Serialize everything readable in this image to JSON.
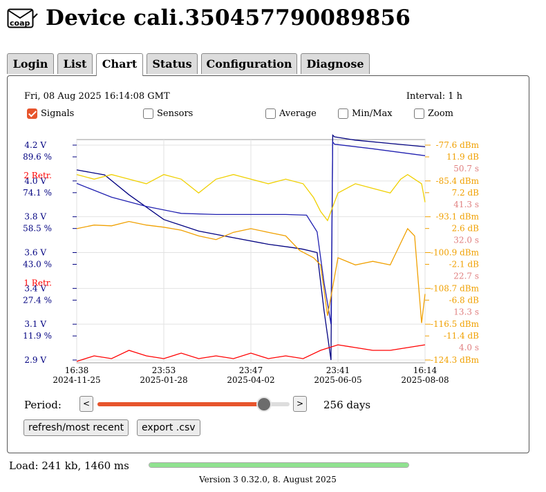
{
  "header": {
    "logo_text": "coap",
    "title": "Device cali.350457790089856"
  },
  "tabs": [
    {
      "label": "Login",
      "active": false
    },
    {
      "label": "List",
      "active": false
    },
    {
      "label": "Chart",
      "active": true
    },
    {
      "label": "Status",
      "active": false
    },
    {
      "label": "Configuration",
      "active": false
    },
    {
      "label": "Diagnose",
      "active": false
    }
  ],
  "chart_panel": {
    "timestamp": "Fri, 08 Aug 2025 16:14:08 GMT",
    "interval": "Interval: 1 h",
    "options": [
      {
        "label": "Signals",
        "checked": true
      },
      {
        "label": "Sensors",
        "checked": false
      },
      {
        "label": "Average",
        "checked": false
      },
      {
        "label": "Min/Max",
        "checked": false
      },
      {
        "label": "Zoom",
        "checked": false
      }
    ],
    "period_label": "Period:",
    "period_prev": "<",
    "period_next": ">",
    "period_days": "256 days",
    "period_fraction": 0.9,
    "refresh_button": "refresh/most recent",
    "export_button": "export .csv"
  },
  "chart_data": {
    "type": "line",
    "x_ticks": [
      {
        "time": "16:38",
        "date": "2024-11-25"
      },
      {
        "time": "23:53",
        "date": "2025-01-28"
      },
      {
        "time": "23:47",
        "date": "2025-04-02"
      },
      {
        "time": "23:41",
        "date": "2025-06-05"
      },
      {
        "time": "16:14",
        "date": "2025-08-08"
      }
    ],
    "left_axis": [
      {
        "voltage": "4.2 V",
        "percent": "89.6 %"
      },
      {
        "voltage": "4.0 V",
        "percent": "74.1 %",
        "retr": "2 Retr."
      },
      {
        "voltage": "3.8 V",
        "percent": "58.5 %"
      },
      {
        "voltage": "3.6 V",
        "percent": "43.0 %"
      },
      {
        "voltage": "3.4 V",
        "percent": "27.4 %",
        "retr": "1 Retr."
      },
      {
        "voltage": "3.1 V",
        "percent": "11.9 %"
      },
      {
        "voltage": "2.9 V",
        "percent": ""
      }
    ],
    "right_axis": [
      {
        "dbm": "-77.6 dBm",
        "db": "11.9 dB",
        "s": "50.7 s"
      },
      {
        "dbm": "-85.4 dBm",
        "db": "7.2 dB",
        "s": "41.3 s"
      },
      {
        "dbm": "-93.1 dBm",
        "db": "2.6 dB",
        "s": "32.0 s"
      },
      {
        "dbm": "-100.9 dBm",
        "db": "-2.1 dB",
        "s": "22.7 s"
      },
      {
        "dbm": "-108.7 dBm",
        "db": "-6.8 dB",
        "s": "13.3 s"
      },
      {
        "dbm": "-116.5 dBm",
        "db": "-11.4 dB",
        "s": "4.0 s"
      },
      {
        "dbm": "-124.3 dBm",
        "db": "",
        "s": ""
      }
    ],
    "series": [
      {
        "name": "voltage",
        "color": "#000080",
        "x": [
          0,
          0.08,
          0.15,
          0.25,
          0.35,
          0.45,
          0.55,
          0.62,
          0.65,
          0.69,
          0.71,
          0.73,
          0.735,
          0.74,
          0.8,
          0.9,
          1.0
        ],
        "y": [
          4.05,
          4.02,
          3.9,
          3.75,
          3.68,
          3.64,
          3.6,
          3.58,
          3.57,
          3.55,
          3.2,
          2.9,
          4.26,
          4.25,
          4.23,
          4.21,
          4.19
        ]
      },
      {
        "name": "percent",
        "color": "#2020b0",
        "x": [
          0,
          0.05,
          0.1,
          0.2,
          0.3,
          0.4,
          0.5,
          0.6,
          0.66,
          0.69,
          0.71,
          0.73,
          0.735,
          0.74,
          0.85,
          1.0
        ],
        "y": [
          73,
          70,
          67,
          63,
          60,
          59.5,
          59.5,
          59.5,
          59.2,
          52,
          30,
          12,
          91,
          90,
          88,
          85
        ]
      },
      {
        "name": "rssi",
        "color": "#f0d000",
        "x": [
          0,
          0.05,
          0.1,
          0.15,
          0.2,
          0.25,
          0.3,
          0.35,
          0.4,
          0.45,
          0.5,
          0.55,
          0.6,
          0.65,
          0.68,
          0.7,
          0.72,
          0.75,
          0.8,
          0.85,
          0.9,
          0.93,
          0.95,
          0.97,
          0.99,
          1.0
        ],
        "y": [
          -84,
          -85,
          -84,
          -85,
          -86,
          -84,
          -85,
          -88,
          -85,
          -84,
          -85,
          -86,
          -85,
          -86,
          -89,
          -92,
          -94,
          -88,
          -86,
          -87,
          -88,
          -85,
          -84,
          -85,
          -86,
          -90
        ]
      },
      {
        "name": "snr",
        "color": "#f0a000",
        "x": [
          0,
          0.05,
          0.1,
          0.15,
          0.2,
          0.25,
          0.3,
          0.35,
          0.4,
          0.45,
          0.5,
          0.55,
          0.6,
          0.64,
          0.68,
          0.7,
          0.72,
          0.75,
          0.8,
          0.85,
          0.9,
          0.93,
          0.95,
          0.97,
          0.99,
          1.0
        ],
        "y": [
          2,
          2.5,
          2.4,
          3,
          2.5,
          2.2,
          1.8,
          1,
          0.5,
          1.5,
          2,
          1.5,
          1,
          -1,
          -2,
          -3,
          -10,
          -2,
          -3,
          -2.5,
          -3,
          0,
          2,
          1,
          -11,
          -7
        ]
      },
      {
        "name": "retransmissions",
        "color": "#ff0000",
        "x": [
          0,
          0.05,
          0.1,
          0.15,
          0.2,
          0.25,
          0.3,
          0.35,
          0.4,
          0.45,
          0.5,
          0.55,
          0.6,
          0.65,
          0.7,
          0.75,
          0.8,
          0.85,
          0.9,
          0.95,
          1.0
        ],
        "y": [
          0,
          0.1,
          0.05,
          0.2,
          0.1,
          0.05,
          0.15,
          0.05,
          0.1,
          0.05,
          0.15,
          0.05,
          0.1,
          0.05,
          0.2,
          0.3,
          0.25,
          0.2,
          0.2,
          0.25,
          0.3
        ]
      }
    ]
  },
  "footer": {
    "load": "Load: 241 kb, 1460 ms",
    "load_fraction": 1.0,
    "version": "Version 3 0.32.0, 8. August 2025"
  },
  "colors": {
    "accent": "#e7542c",
    "voltage": "#000080",
    "rssi": "#f0d000",
    "snr": "#f0a000",
    "retr": "#ff0000",
    "time_axis": "#e08080"
  }
}
